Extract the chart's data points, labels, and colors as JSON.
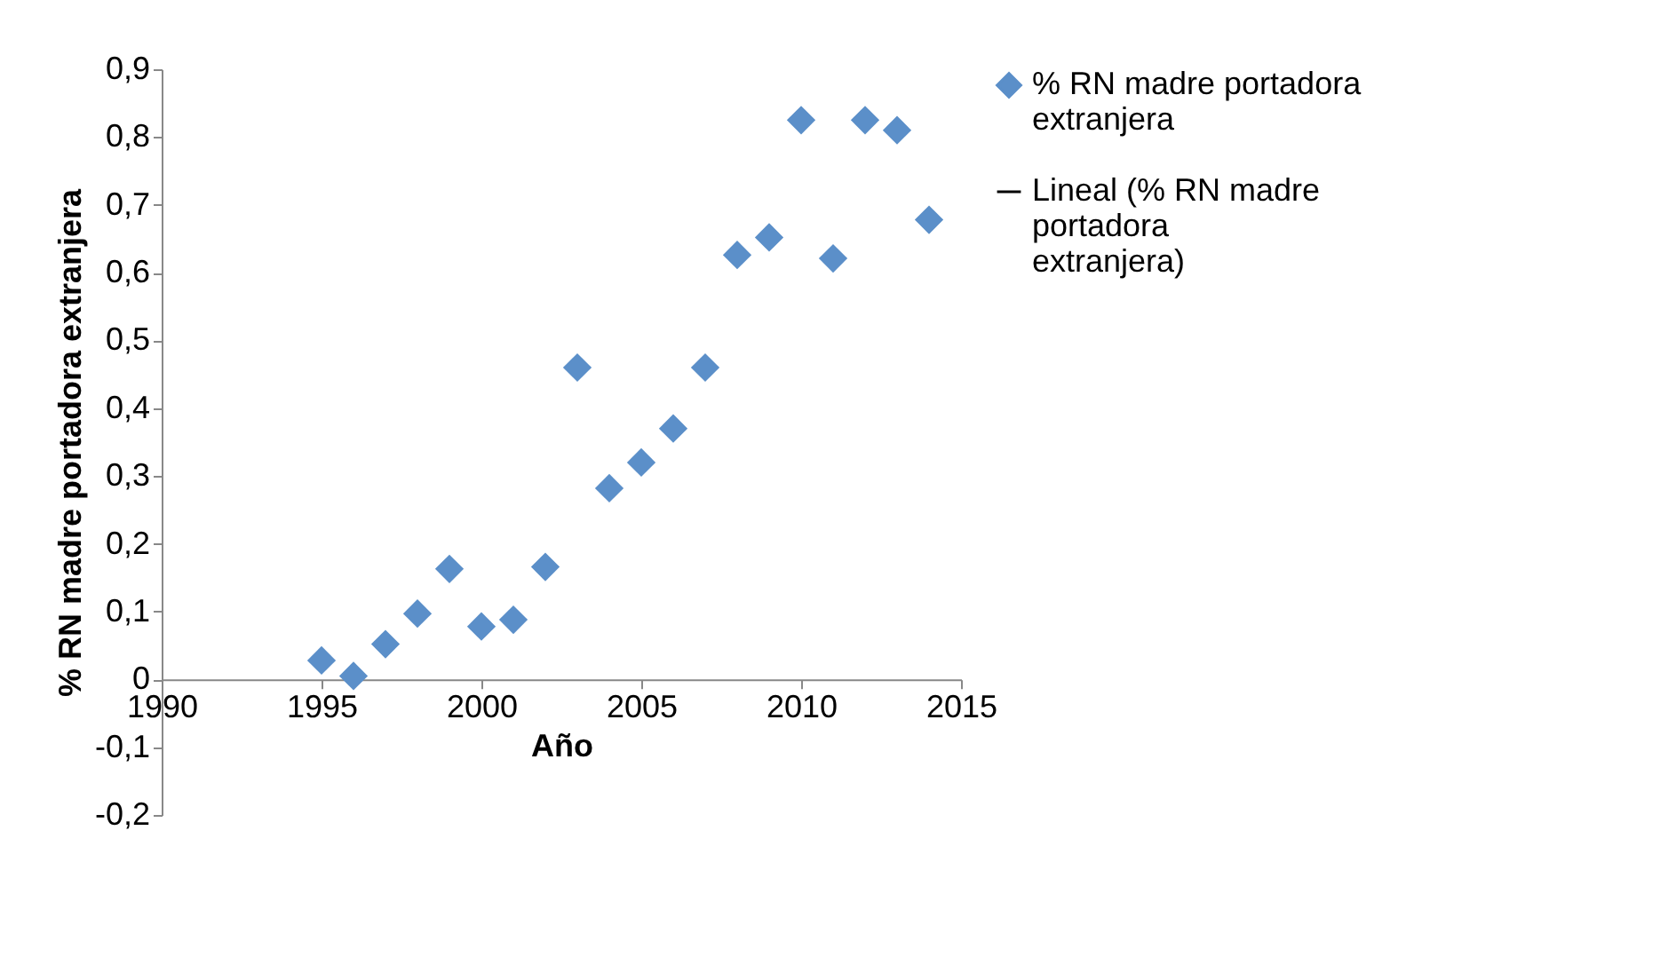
{
  "chart_data": {
    "type": "scatter",
    "xlabel": "Año",
    "ylabel": "% RN madre portadora extranjera",
    "x": [
      1995,
      1996,
      1997,
      1998,
      1999,
      2000,
      2001,
      2002,
      2003,
      2004,
      2005,
      2006,
      2007,
      2008,
      2009,
      2010,
      2011,
      2012,
      2013,
      2014
    ],
    "series": [
      {
        "name": "% RN madre portadora extranjera",
        "color": "#5b8fc9",
        "marker": "diamond",
        "values": [
          0.028,
          0.005,
          0.052,
          0.097,
          0.163,
          0.078,
          0.088,
          0.166,
          0.46,
          0.282,
          0.32,
          0.37,
          0.46,
          0.626,
          0.652,
          0.825,
          0.621,
          0.825,
          0.81,
          0.678
        ]
      },
      {
        "name": "Lineal (% RN madre portadora extranjera)",
        "type": "line",
        "color": "#000000",
        "values": [
          null,
          null,
          null,
          null,
          null,
          null,
          null,
          null,
          null,
          null,
          null,
          null,
          null,
          null,
          null,
          null,
          null,
          null,
          null,
          null
        ]
      }
    ],
    "xlim": [
      1990,
      2015
    ],
    "xticks": [
      1990,
      1995,
      2000,
      2005,
      2010,
      2015
    ],
    "ylim": [
      -0.2,
      0.9
    ],
    "yticks": [
      {
        "value": -0.2,
        "label": "-0,2"
      },
      {
        "value": -0.1,
        "label": "-0,1"
      },
      0,
      {
        "value": 0.1,
        "label": "0,1"
      },
      {
        "value": 0.2,
        "label": "0,2"
      },
      {
        "value": 0.3,
        "label": "0,3"
      },
      {
        "value": 0.4,
        "label": "0,4"
      },
      {
        "value": 0.5,
        "label": "0,5"
      },
      {
        "value": 0.6,
        "label": "0,6"
      },
      {
        "value": 0.7,
        "label": "0,7"
      },
      {
        "value": 0.8,
        "label": "0,8"
      },
      {
        "value": 0.9,
        "label": "0,9"
      }
    ],
    "grid": false,
    "legend": "right"
  }
}
